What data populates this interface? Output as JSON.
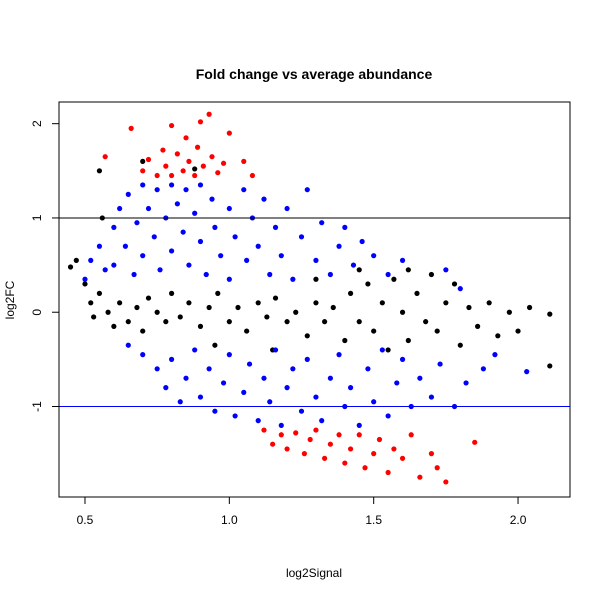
{
  "chart_data": {
    "type": "scatter",
    "title": "Fold change vs average abundance",
    "xlabel": "log2Signal",
    "ylabel": "log2FC",
    "xlim": [
      0.41,
      2.18
    ],
    "ylim": [
      -1.96,
      2.23
    ],
    "xticks": [
      0.5,
      1.0,
      1.5,
      2.0
    ],
    "xtick_labels": [
      "0.5",
      "1.0",
      "1.5",
      "2.0"
    ],
    "yticks": [
      2,
      1,
      0,
      -1
    ],
    "ytick_labels": [
      "2",
      "1",
      "0",
      "-1"
    ],
    "hlines": [
      {
        "y": 1,
        "color": "#000000"
      },
      {
        "y": -1,
        "color": "#0000ff"
      }
    ],
    "grid": false,
    "colors": {
      "black": "#000000",
      "blue": "#0000ff",
      "red": "#ff0000"
    },
    "series": [
      {
        "color": "black",
        "points": [
          [
            0.45,
            0.48
          ],
          [
            0.47,
            0.55
          ],
          [
            0.5,
            0.3
          ],
          [
            0.52,
            0.1
          ],
          [
            0.53,
            -0.05
          ],
          [
            0.55,
            1.5
          ],
          [
            0.56,
            1.0
          ],
          [
            0.55,
            0.2
          ],
          [
            0.58,
            0.0
          ],
          [
            0.6,
            -0.15
          ],
          [
            0.62,
            0.1
          ],
          [
            0.65,
            -0.1
          ],
          [
            0.68,
            0.05
          ],
          [
            0.7,
            -0.2
          ],
          [
            0.72,
            0.15
          ],
          [
            0.75,
            0.0
          ],
          [
            0.78,
            -0.1
          ],
          [
            0.8,
            0.2
          ],
          [
            0.83,
            -0.05
          ],
          [
            0.86,
            0.1
          ],
          [
            0.9,
            -0.15
          ],
          [
            0.93,
            0.05
          ],
          [
            0.96,
            0.2
          ],
          [
            1.0,
            -0.1
          ],
          [
            1.03,
            0.05
          ],
          [
            1.06,
            -0.2
          ],
          [
            1.1,
            0.1
          ],
          [
            1.13,
            -0.05
          ],
          [
            1.16,
            0.15
          ],
          [
            1.2,
            -0.1
          ],
          [
            1.23,
            0.0
          ],
          [
            1.27,
            -0.25
          ],
          [
            1.3,
            0.1
          ],
          [
            1.33,
            -0.1
          ],
          [
            1.36,
            0.05
          ],
          [
            1.4,
            -0.3
          ],
          [
            1.42,
            0.2
          ],
          [
            1.45,
            -0.1
          ],
          [
            1.48,
            0.3
          ],
          [
            1.5,
            -0.2
          ],
          [
            1.53,
            0.1
          ],
          [
            1.55,
            -0.4
          ],
          [
            1.57,
            0.35
          ],
          [
            1.6,
            0.0
          ],
          [
            1.62,
            -0.3
          ],
          [
            1.65,
            0.2
          ],
          [
            1.68,
            -0.1
          ],
          [
            1.7,
            0.4
          ],
          [
            1.72,
            -0.2
          ],
          [
            1.75,
            0.1
          ],
          [
            1.78,
            0.3
          ],
          [
            1.8,
            -0.35
          ],
          [
            1.83,
            0.05
          ],
          [
            1.86,
            -0.15
          ],
          [
            1.9,
            0.1
          ],
          [
            1.93,
            -0.25
          ],
          [
            1.97,
            0.0
          ],
          [
            2.0,
            -0.2
          ],
          [
            2.04,
            0.05
          ],
          [
            2.11,
            -0.02
          ],
          [
            2.11,
            -0.57
          ],
          [
            0.88,
            1.52
          ],
          [
            0.7,
            1.6
          ],
          [
            0.95,
            -0.35
          ],
          [
            1.15,
            -0.4
          ],
          [
            1.45,
            0.45
          ],
          [
            1.62,
            0.45
          ],
          [
            1.3,
            0.35
          ]
        ]
      },
      {
        "color": "blue",
        "points": [
          [
            0.5,
            0.35
          ],
          [
            0.52,
            0.55
          ],
          [
            0.55,
            0.7
          ],
          [
            0.57,
            0.45
          ],
          [
            0.6,
            0.9
          ],
          [
            0.6,
            0.5
          ],
          [
            0.62,
            1.1
          ],
          [
            0.64,
            0.7
          ],
          [
            0.65,
            1.25
          ],
          [
            0.67,
            0.4
          ],
          [
            0.68,
            0.95
          ],
          [
            0.7,
            1.35
          ],
          [
            0.7,
            0.6
          ],
          [
            0.72,
            1.1
          ],
          [
            0.74,
            0.8
          ],
          [
            0.75,
            1.3
          ],
          [
            0.76,
            0.45
          ],
          [
            0.78,
            1.0
          ],
          [
            0.8,
            1.35
          ],
          [
            0.8,
            0.65
          ],
          [
            0.82,
            1.15
          ],
          [
            0.84,
            0.85
          ],
          [
            0.85,
            1.3
          ],
          [
            0.86,
            0.5
          ],
          [
            0.88,
            1.05
          ],
          [
            0.9,
            0.75
          ],
          [
            0.9,
            1.35
          ],
          [
            0.92,
            0.4
          ],
          [
            0.94,
            1.2
          ],
          [
            0.95,
            0.9
          ],
          [
            0.97,
            0.6
          ],
          [
            1.0,
            1.1
          ],
          [
            1.0,
            0.35
          ],
          [
            1.02,
            0.8
          ],
          [
            1.05,
            1.3
          ],
          [
            1.06,
            0.55
          ],
          [
            1.08,
            1.0
          ],
          [
            1.1,
            0.7
          ],
          [
            1.12,
            1.2
          ],
          [
            1.14,
            0.4
          ],
          [
            1.16,
            0.9
          ],
          [
            1.18,
            0.6
          ],
          [
            1.2,
            1.1
          ],
          [
            1.22,
            0.35
          ],
          [
            1.25,
            0.8
          ],
          [
            1.27,
            1.3
          ],
          [
            1.3,
            0.55
          ],
          [
            1.32,
            0.95
          ],
          [
            1.35,
            0.4
          ],
          [
            1.38,
            0.7
          ],
          [
            1.4,
            0.9
          ],
          [
            1.43,
            0.5
          ],
          [
            1.46,
            0.75
          ],
          [
            1.5,
            0.6
          ],
          [
            1.55,
            0.4
          ],
          [
            1.6,
            0.55
          ],
          [
            1.75,
            0.45
          ],
          [
            1.8,
            0.25
          ],
          [
            0.65,
            -0.35
          ],
          [
            0.7,
            -0.45
          ],
          [
            0.75,
            -0.6
          ],
          [
            0.78,
            -0.8
          ],
          [
            0.8,
            -0.5
          ],
          [
            0.83,
            -0.95
          ],
          [
            0.85,
            -0.7
          ],
          [
            0.88,
            -0.4
          ],
          [
            0.9,
            -0.9
          ],
          [
            0.93,
            -0.6
          ],
          [
            0.95,
            -1.05
          ],
          [
            0.98,
            -0.75
          ],
          [
            1.0,
            -0.45
          ],
          [
            1.02,
            -1.1
          ],
          [
            1.05,
            -0.85
          ],
          [
            1.07,
            -0.55
          ],
          [
            1.1,
            -1.15
          ],
          [
            1.12,
            -0.7
          ],
          [
            1.14,
            -0.95
          ],
          [
            1.16,
            -0.4
          ],
          [
            1.18,
            -1.2
          ],
          [
            1.2,
            -0.8
          ],
          [
            1.22,
            -0.6
          ],
          [
            1.25,
            -1.05
          ],
          [
            1.27,
            -0.5
          ],
          [
            1.3,
            -0.9
          ],
          [
            1.32,
            -1.15
          ],
          [
            1.35,
            -0.7
          ],
          [
            1.38,
            -0.45
          ],
          [
            1.4,
            -1.0
          ],
          [
            1.42,
            -0.8
          ],
          [
            1.45,
            -1.2
          ],
          [
            1.48,
            -0.6
          ],
          [
            1.5,
            -0.95
          ],
          [
            1.53,
            -0.4
          ],
          [
            1.55,
            -1.1
          ],
          [
            1.58,
            -0.75
          ],
          [
            1.6,
            -0.5
          ],
          [
            1.63,
            -1.0
          ],
          [
            1.66,
            -0.7
          ],
          [
            1.7,
            -0.9
          ],
          [
            1.73,
            -0.55
          ],
          [
            1.78,
            -1.0
          ],
          [
            1.82,
            -0.75
          ],
          [
            1.88,
            -0.6
          ],
          [
            1.92,
            -0.45
          ],
          [
            2.03,
            -0.63
          ]
        ]
      },
      {
        "color": "red",
        "points": [
          [
            0.57,
            1.65
          ],
          [
            0.66,
            1.95
          ],
          [
            0.7,
            1.5
          ],
          [
            0.72,
            1.62
          ],
          [
            0.75,
            1.45
          ],
          [
            0.77,
            1.72
          ],
          [
            0.78,
            1.55
          ],
          [
            0.8,
            1.98
          ],
          [
            0.8,
            1.45
          ],
          [
            0.82,
            1.68
          ],
          [
            0.84,
            1.5
          ],
          [
            0.85,
            1.85
          ],
          [
            0.86,
            1.6
          ],
          [
            0.88,
            1.45
          ],
          [
            0.89,
            1.75
          ],
          [
            0.9,
            2.02
          ],
          [
            0.91,
            1.55
          ],
          [
            0.93,
            2.1
          ],
          [
            0.94,
            1.65
          ],
          [
            0.96,
            1.48
          ],
          [
            0.98,
            1.58
          ],
          [
            1.0,
            1.9
          ],
          [
            1.05,
            1.6
          ],
          [
            1.08,
            1.45
          ],
          [
            1.12,
            -1.25
          ],
          [
            1.15,
            -1.4
          ],
          [
            1.18,
            -1.3
          ],
          [
            1.2,
            -1.45
          ],
          [
            1.23,
            -1.28
          ],
          [
            1.26,
            -1.5
          ],
          [
            1.28,
            -1.35
          ],
          [
            1.3,
            -1.25
          ],
          [
            1.33,
            -1.55
          ],
          [
            1.35,
            -1.4
          ],
          [
            1.38,
            -1.3
          ],
          [
            1.4,
            -1.6
          ],
          [
            1.42,
            -1.45
          ],
          [
            1.45,
            -1.3
          ],
          [
            1.47,
            -1.65
          ],
          [
            1.5,
            -1.5
          ],
          [
            1.52,
            -1.35
          ],
          [
            1.55,
            -1.7
          ],
          [
            1.57,
            -1.45
          ],
          [
            1.6,
            -1.55
          ],
          [
            1.63,
            -1.3
          ],
          [
            1.66,
            -1.75
          ],
          [
            1.7,
            -1.5
          ],
          [
            1.72,
            -1.65
          ],
          [
            1.75,
            -1.8
          ],
          [
            1.85,
            -1.38
          ]
        ]
      }
    ]
  }
}
